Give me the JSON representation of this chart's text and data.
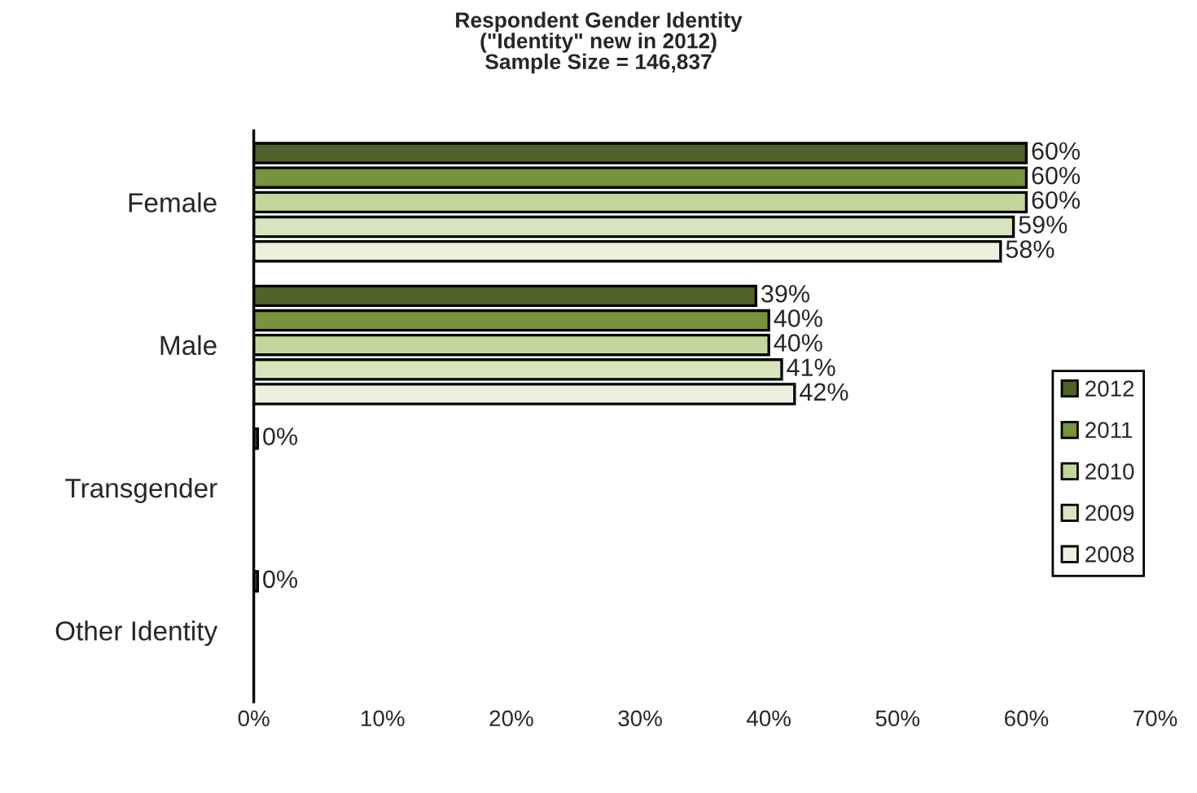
{
  "chart_data": {
    "type": "bar",
    "orientation": "horizontal",
    "title": "Respondent Gender Identity\n(\"Identity\" new in 2012)\nSample Size = 146,837",
    "categories": [
      "Female",
      "Male",
      "Transgender",
      "Other Identity"
    ],
    "series": [
      {
        "name": "2012",
        "color": "#4f6228",
        "values": [
          60,
          39,
          0.3,
          0.3
        ],
        "value_labels": [
          "60%",
          "39%",
          "0%",
          "0%"
        ]
      },
      {
        "name": "2011",
        "color": "#77933c",
        "values": [
          60,
          40,
          null,
          null
        ],
        "value_labels": [
          "60%",
          "40%",
          null,
          null
        ]
      },
      {
        "name": "2010",
        "color": "#c3d69b",
        "values": [
          60,
          40,
          null,
          null
        ],
        "value_labels": [
          "60%",
          "40%",
          null,
          null
        ]
      },
      {
        "name": "2009",
        "color": "#d7e4bd",
        "values": [
          59,
          41,
          null,
          null
        ],
        "value_labels": [
          "59%",
          "41%",
          null,
          null
        ]
      },
      {
        "name": "2008",
        "color": "#ebf1de",
        "values": [
          58,
          42,
          null,
          null
        ],
        "value_labels": [
          "58%",
          "42%",
          null,
          null
        ]
      }
    ],
    "xlim": [
      0,
      70
    ],
    "xticks": [
      {
        "value": 0,
        "label": "0%"
      },
      {
        "value": 10,
        "label": "10%"
      },
      {
        "value": 20,
        "label": "20%"
      },
      {
        "value": 30,
        "label": "30%"
      },
      {
        "value": 40,
        "label": "40%"
      },
      {
        "value": 50,
        "label": "50%"
      },
      {
        "value": 60,
        "label": "60%"
      },
      {
        "value": 70,
        "label": "70%"
      }
    ],
    "grid": false,
    "legend": "right"
  }
}
